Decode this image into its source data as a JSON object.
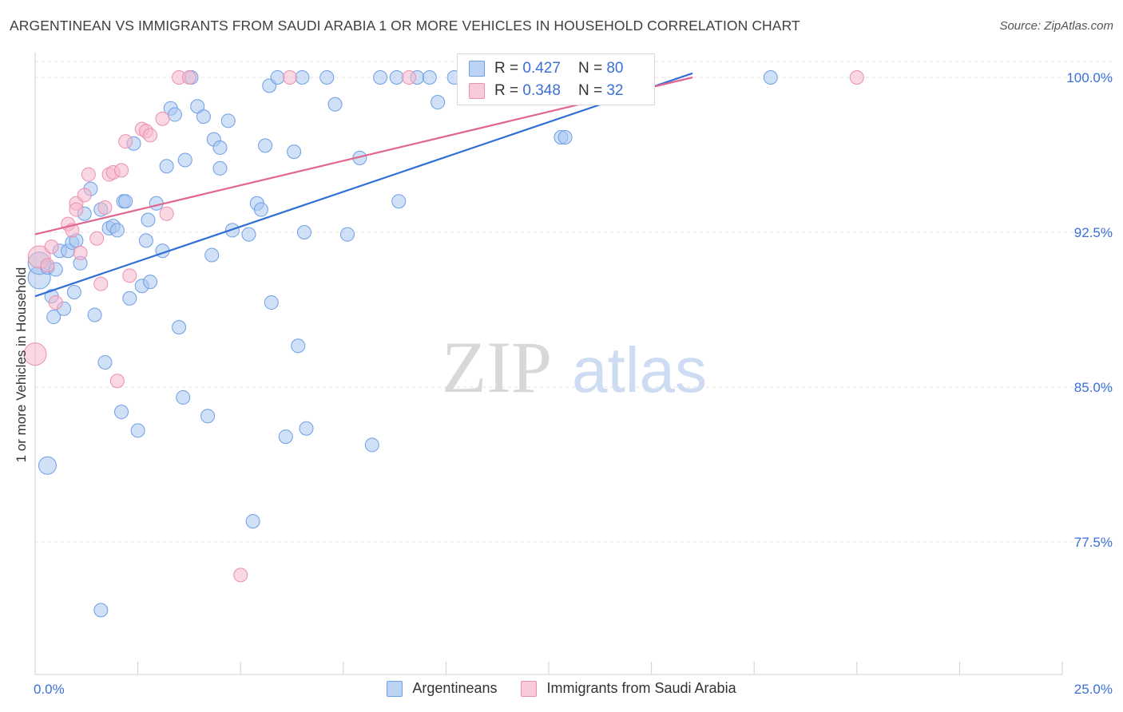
{
  "title": "ARGENTINEAN VS IMMIGRANTS FROM SAUDI ARABIA 1 OR MORE VEHICLES IN HOUSEHOLD CORRELATION CHART",
  "source": "Source: ZipAtlas.com",
  "watermark": {
    "zip": "ZIP",
    "atlas": "atlas"
  },
  "colors": {
    "blue_fill": "#a8c6f0",
    "blue_stroke": "#6e9ee6",
    "blue_line": "#2f6fd6",
    "pink_fill": "#f6b8cc",
    "pink_stroke": "#ec8fae",
    "pink_line": "#e0668f",
    "tick_label": "#3a6fd8",
    "grid": "#e3e3e3"
  },
  "legend": {
    "rows": [
      {
        "r_label": "R =",
        "r_value": "0.427",
        "n_label": "N =",
        "n_value": "80",
        "series": "blue"
      },
      {
        "r_label": "R =",
        "r_value": "0.348",
        "n_label": "N =",
        "n_value": "32",
        "series": "pink"
      }
    ]
  },
  "bottom_legend": [
    "Argentineans",
    "Immigrants from Saudi Arabia"
  ],
  "chart_data": {
    "type": "scatter",
    "title": "ARGENTINEAN VS IMMIGRANTS FROM SAUDI ARABIA 1 OR MORE VEHICLES IN HOUSEHOLD CORRELATION CHART",
    "xlabel": "",
    "ylabel": "1 or more Vehicles in Household",
    "xlim": [
      0,
      25
    ],
    "ylim": [
      71.5,
      101.5
    ],
    "x_tick_labels": [
      "0.0%",
      "25.0%"
    ],
    "y_ticks": [
      100.0,
      92.5,
      85.0,
      77.5
    ],
    "y_tick_labels": [
      "100.0%",
      "92.5%",
      "85.0%",
      "77.5%"
    ],
    "grid": true,
    "series": [
      {
        "name": "Argentineans",
        "color": "blue",
        "trend": {
          "x": [
            0.0,
            16.0
          ],
          "y": [
            89.4,
            100.2
          ]
        },
        "points": [
          [
            0.1,
            90.3
          ],
          [
            0.1,
            91.0
          ],
          [
            0.3,
            90.8
          ],
          [
            0.4,
            89.4
          ],
          [
            0.45,
            88.4
          ],
          [
            0.5,
            90.7
          ],
          [
            0.6,
            91.6
          ],
          [
            0.7,
            88.8
          ],
          [
            0.8,
            91.6
          ],
          [
            0.9,
            92.0
          ],
          [
            0.95,
            89.6
          ],
          [
            1.1,
            91.0
          ],
          [
            1.0,
            92.1
          ],
          [
            1.2,
            93.4
          ],
          [
            1.35,
            94.6
          ],
          [
            1.45,
            88.5
          ],
          [
            1.6,
            93.6
          ],
          [
            1.7,
            86.2
          ],
          [
            1.8,
            92.7
          ],
          [
            1.9,
            92.8
          ],
          [
            2.0,
            92.6
          ],
          [
            2.1,
            83.8
          ],
          [
            2.15,
            94.0
          ],
          [
            2.2,
            94.0
          ],
          [
            2.3,
            89.3
          ],
          [
            2.4,
            96.8
          ],
          [
            2.5,
            82.9
          ],
          [
            2.6,
            89.9
          ],
          [
            2.7,
            92.1
          ],
          [
            2.75,
            93.1
          ],
          [
            2.8,
            90.1
          ],
          [
            2.95,
            93.9
          ],
          [
            3.1,
            91.6
          ],
          [
            3.2,
            95.7
          ],
          [
            3.3,
            98.5
          ],
          [
            3.4,
            98.2
          ],
          [
            3.5,
            87.9
          ],
          [
            3.6,
            84.5
          ],
          [
            3.65,
            96.0
          ],
          [
            3.8,
            100.0
          ],
          [
            3.95,
            98.6
          ],
          [
            4.1,
            98.1
          ],
          [
            4.2,
            83.6
          ],
          [
            4.3,
            91.4
          ],
          [
            4.35,
            97.0
          ],
          [
            4.5,
            96.6
          ],
          [
            4.5,
            95.6
          ],
          [
            4.7,
            97.9
          ],
          [
            4.8,
            92.6
          ],
          [
            5.2,
            92.4
          ],
          [
            5.3,
            78.5
          ],
          [
            5.4,
            93.9
          ],
          [
            5.5,
            93.6
          ],
          [
            5.6,
            96.7
          ],
          [
            5.7,
            99.6
          ],
          [
            5.75,
            89.1
          ],
          [
            5.9,
            100.0
          ],
          [
            6.1,
            82.6
          ],
          [
            6.3,
            96.4
          ],
          [
            6.4,
            87.0
          ],
          [
            6.5,
            100.0
          ],
          [
            6.55,
            92.5
          ],
          [
            6.6,
            83.0
          ],
          [
            7.1,
            100.0
          ],
          [
            7.3,
            98.7
          ],
          [
            7.6,
            92.4
          ],
          [
            7.9,
            96.1
          ],
          [
            8.2,
            82.2
          ],
          [
            8.4,
            100.0
          ],
          [
            8.8,
            100.0
          ],
          [
            8.85,
            94.0
          ],
          [
            9.3,
            100.0
          ],
          [
            9.6,
            100.0
          ],
          [
            9.8,
            98.8
          ],
          [
            10.2,
            100.0
          ],
          [
            12.8,
            97.1
          ],
          [
            12.9,
            97.1
          ],
          [
            17.9,
            100.0
          ],
          [
            1.6,
            74.2
          ],
          [
            0.3,
            81.2
          ]
        ]
      },
      {
        "name": "Immigrants from Saudi Arabia",
        "color": "pink",
        "trend": {
          "x": [
            0.0,
            16.0
          ],
          "y": [
            92.4,
            100.0
          ]
        },
        "points": [
          [
            0.0,
            86.6
          ],
          [
            0.1,
            91.3
          ],
          [
            0.3,
            90.9
          ],
          [
            0.4,
            91.8
          ],
          [
            0.5,
            89.1
          ],
          [
            0.8,
            92.9
          ],
          [
            0.9,
            92.6
          ],
          [
            1.0,
            93.9
          ],
          [
            1.0,
            93.6
          ],
          [
            1.1,
            91.5
          ],
          [
            1.2,
            94.3
          ],
          [
            1.3,
            95.3
          ],
          [
            1.5,
            92.2
          ],
          [
            1.6,
            90.0
          ],
          [
            1.7,
            93.7
          ],
          [
            1.8,
            95.3
          ],
          [
            1.9,
            95.4
          ],
          [
            2.0,
            85.3
          ],
          [
            2.1,
            95.5
          ],
          [
            2.2,
            96.9
          ],
          [
            2.3,
            90.4
          ],
          [
            2.6,
            97.5
          ],
          [
            2.7,
            97.4
          ],
          [
            2.8,
            97.2
          ],
          [
            3.1,
            98.0
          ],
          [
            3.2,
            93.4
          ],
          [
            3.5,
            100.0
          ],
          [
            3.75,
            100.0
          ],
          [
            5.0,
            75.9
          ],
          [
            6.2,
            100.0
          ],
          [
            9.1,
            100.0
          ],
          [
            20.0,
            100.0
          ]
        ]
      }
    ]
  }
}
